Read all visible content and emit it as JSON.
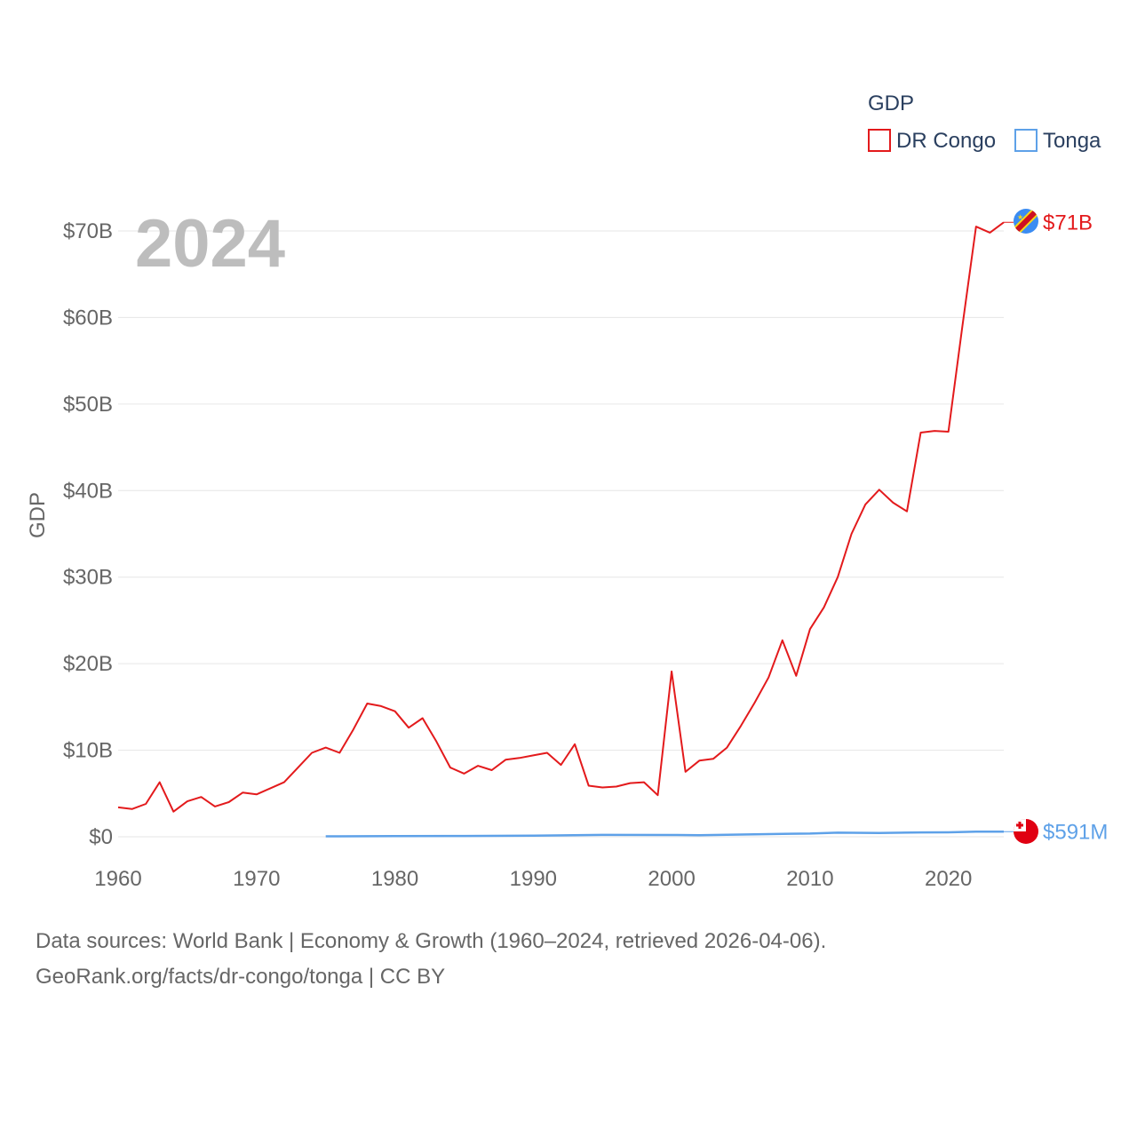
{
  "chart_data": {
    "type": "line",
    "ylabel": "GDP",
    "legend_title": "GDP",
    "legend_position": "top-right",
    "year_label": "2024",
    "ylim": [
      0,
      75
    ],
    "xlim": [
      1960,
      2024
    ],
    "y_ticks": [
      {
        "value": 0,
        "label": "$0"
      },
      {
        "value": 10,
        "label": "$10B"
      },
      {
        "value": 20,
        "label": "$20B"
      },
      {
        "value": 30,
        "label": "$30B"
      },
      {
        "value": 40,
        "label": "$40B"
      },
      {
        "value": 50,
        "label": "$50B"
      },
      {
        "value": 60,
        "label": "$60B"
      },
      {
        "value": 70,
        "label": "$70B"
      }
    ],
    "x_ticks": [
      {
        "value": 1960,
        "label": "1960"
      },
      {
        "value": 1970,
        "label": "1970"
      },
      {
        "value": 1980,
        "label": "1980"
      },
      {
        "value": 1990,
        "label": "1990"
      },
      {
        "value": 2000,
        "label": "2000"
      },
      {
        "value": 2010,
        "label": "2010"
      },
      {
        "value": 2020,
        "label": "2020"
      }
    ],
    "series": [
      {
        "name": "DR Congo",
        "color": "#e31a1c",
        "end_label": "$71B",
        "x": [
          1960,
          1961,
          1962,
          1963,
          1964,
          1965,
          1966,
          1967,
          1968,
          1969,
          1970,
          1971,
          1972,
          1973,
          1974,
          1975,
          1976,
          1977,
          1978,
          1979,
          1980,
          1981,
          1982,
          1983,
          1984,
          1985,
          1986,
          1987,
          1988,
          1989,
          1990,
          1991,
          1992,
          1993,
          1994,
          1995,
          1996,
          1997,
          1998,
          1999,
          2000,
          2001,
          2002,
          2003,
          2004,
          2005,
          2006,
          2007,
          2008,
          2009,
          2010,
          2011,
          2012,
          2013,
          2014,
          2015,
          2016,
          2017,
          2018,
          2019,
          2020,
          2021,
          2022,
          2023,
          2024
        ],
        "values": [
          3.4,
          3.2,
          3.8,
          6.3,
          2.9,
          4.1,
          4.6,
          3.5,
          4.0,
          5.1,
          4.9,
          5.6,
          6.3,
          8.0,
          9.7,
          10.3,
          9.7,
          12.4,
          15.4,
          15.1,
          14.5,
          12.6,
          13.7,
          11.0,
          8.0,
          7.3,
          8.2,
          7.7,
          8.9,
          9.1,
          9.4,
          9.7,
          8.3,
          10.7,
          5.9,
          5.7,
          5.8,
          6.2,
          6.3,
          4.8,
          19.1,
          7.5,
          8.8,
          9.0,
          10.3,
          12.8,
          15.5,
          18.4,
          22.7,
          18.6,
          24.0,
          26.5,
          30.0,
          35.0,
          38.4,
          40.1,
          38.6,
          37.6,
          46.7,
          46.9,
          46.8,
          58.9,
          70.5,
          69.8,
          71.0
        ]
      },
      {
        "name": "Tonga",
        "color": "#5ea1e8",
        "end_label": "$591M",
        "x": [
          1975,
          1980,
          1985,
          1990,
          1995,
          2000,
          2002,
          2005,
          2008,
          2010,
          2012,
          2015,
          2018,
          2020,
          2022,
          2024
        ],
        "values": [
          0.05,
          0.08,
          0.09,
          0.12,
          0.22,
          0.21,
          0.18,
          0.26,
          0.34,
          0.37,
          0.47,
          0.43,
          0.5,
          0.51,
          0.58,
          0.59
        ]
      }
    ]
  },
  "footer": {
    "line1": "Data sources: World Bank | Economy & Growth (1960–2024, retrieved 2026-04-06).",
    "line2": "GeoRank.org/facts/dr-congo/tonga | CC BY"
  }
}
